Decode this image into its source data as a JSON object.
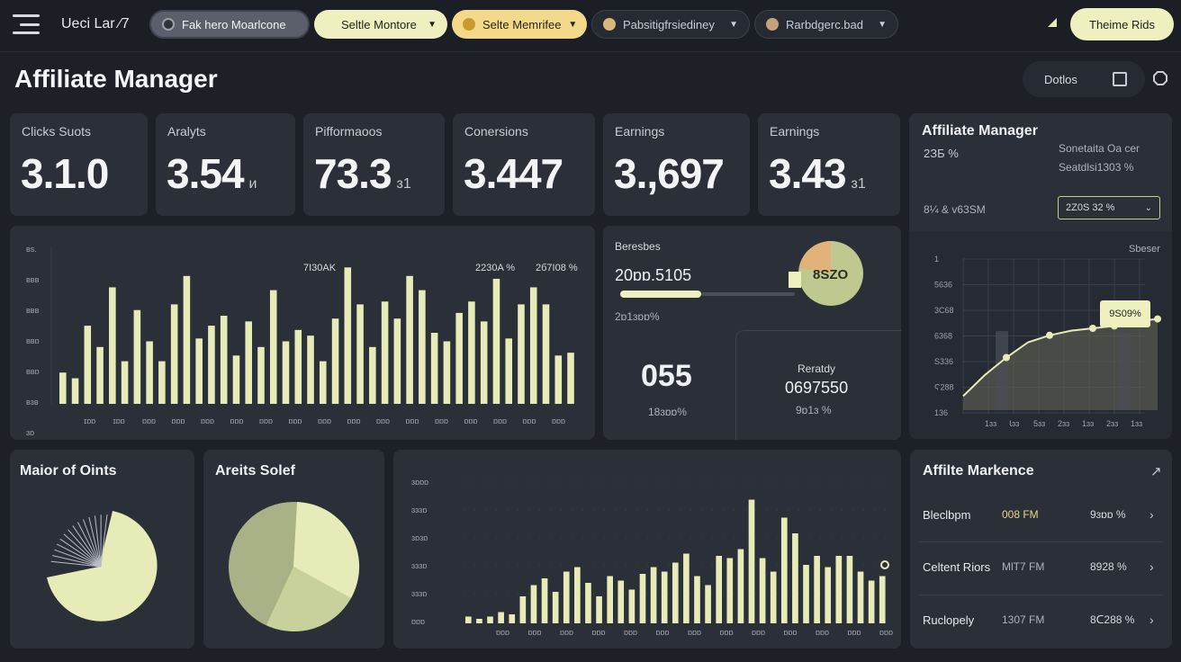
{
  "topbar": {
    "brand": "Ueci Lar ⁄7",
    "pills": [
      {
        "label": "Fak hero Moarlcone",
        "style": "grey"
      },
      {
        "label": "Seltle Montore",
        "style": "lime"
      },
      {
        "label": "Selte Memrifee",
        "style": "amber"
      },
      {
        "label": "Pabsitigfrsiediney",
        "style": "dark"
      },
      {
        "label": "Rarbdgerc.bad",
        "style": "dark"
      }
    ],
    "theme_button": "Theime Rids"
  },
  "page": {
    "title": "Affiliate Manager",
    "header_button": "Dotlos"
  },
  "kpis": [
    {
      "label": "Clicks Suots",
      "value": "3.1.0",
      "unit": ""
    },
    {
      "label": "Aralyts",
      "value": "3.54",
      "unit": "и"
    },
    {
      "label": "Pifformaoos",
      "value": "73.3",
      "unit": "ɜ1"
    },
    {
      "label": "Conersions",
      "value": "3.447",
      "unit": ""
    },
    {
      "label": "Earnings",
      "value": "3.,697",
      "unit": ""
    },
    {
      "label": "Earnings",
      "value": "3.43",
      "unit": "ɜ1"
    }
  ],
  "side_panel": {
    "title": "Affiliate Manager",
    "metric_left": "2ЗБ %",
    "metric_right_1": "Sonetaita Oa cer",
    "metric_right_2": "Seatdlsi1303 %",
    "footer_left": "8¼ & v63SM",
    "select_value": "2Z0S 32 %",
    "chart_legend": "Sbeser",
    "tooltip": "9S09%"
  },
  "main_chart": {
    "annotations": [
      "7I30AK",
      "2230A %",
      "2б7Ι08 %"
    ],
    "y_ticks": [
      "ʙs.",
      "ʙʙʙ",
      "ʙʙʙ",
      "ʙʙɒ",
      "ʙʙɒ",
      "ʙɜʙ",
      "ɜɒ"
    ],
    "x_ticks": [
      "ɪɒɒ",
      "ɪɒɒ",
      "ɒɒɒ",
      "ɒɒɒ",
      "ɒɒɒ",
      "ɒɒɒ",
      "ɒɒɒ",
      "ɒɒɒ",
      "ɒɒɒ",
      "ɒɒɒ",
      "ɒɒɒ",
      "ɒɒɒ",
      "ɒɒɒ",
      "ɒɒɒ",
      "ɒɒɒ",
      "ɒɒɒ",
      "ɒɒɒ"
    ]
  },
  "mid_panel": {
    "label": "Beresbes",
    "value": "20ɒɒ.5105",
    "sub": "2ɒ1ɜɒɒ%",
    "donut_label": "8SZO",
    "big_value": "055",
    "big_sub": "18ɜɒɒ%",
    "right_label": "Reratdy",
    "right_value": "0697550",
    "right_sub": "9ɒ1ɜ %"
  },
  "line_chart": {
    "y_ticks": [
      "1",
      "5636",
      "3C68",
      "6368",
      "S336",
      "Ϛ288",
      "136"
    ],
    "x_ticks": [
      "1ɜɜ",
      "Ꙇɜɜ",
      "5ɜɜ",
      "2ɜɜ",
      "1ɜɜ",
      "2ɜɜ",
      "1ɜɜ"
    ],
    "points": [
      12,
      30,
      45,
      58,
      64,
      68,
      70,
      72,
      76,
      78
    ]
  },
  "cards_bottom": {
    "pie1_title": "Maior of Oints",
    "pie2_title": "Areits Solef",
    "bar_y_ticks": [
      "ɜɒɒɒ",
      "ɜɜɜɒ",
      "ɜɒɜɒ",
      "ɜɜɜɒ",
      "ɜɜɜɒ",
      "ɒɒɒ"
    ],
    "bar_x_ticks": [
      "ɒɒɒ",
      "ɒɒɒ",
      "ɒɒɒ",
      "ɒɒɒ",
      "ɒɒɒ",
      "ɒɒɒ",
      "ɒɒɒ",
      "ɒɒɒ",
      "ɒɒɒ",
      "ɒɒɒ",
      "ɒɒɒ",
      "ɒɒɒ",
      "ɒɒɒ"
    ]
  },
  "market": {
    "title": "Affilte Markence",
    "rows": [
      {
        "name": "Bleclbpm",
        "mid": "008 FM",
        "val": "9ɜɒɒ %",
        "highlight": true
      },
      {
        "name": "Celtent Riors",
        "mid": "MlT7 FM",
        "val": "8928 %",
        "highlight": false
      },
      {
        "name": "Ruclopely",
        "mid": "1307 FM",
        "val": "8ᑕ288 %",
        "highlight": false
      }
    ]
  },
  "chart_data": [
    {
      "type": "bar",
      "values": [
        22,
        18,
        55,
        40,
        82,
        30,
        66,
        44,
        30,
        70,
        90,
        46,
        55,
        62,
        34,
        58,
        40,
        80,
        44,
        52,
        48,
        30,
        60,
        96,
        70,
        40,
        72,
        60,
        90,
        80,
        50,
        44,
        64,
        72,
        58,
        88,
        46,
        70,
        82,
        70,
        34,
        36
      ]
    },
    {
      "type": "bar",
      "values": [
        6,
        4,
        6,
        10,
        8,
        24,
        34,
        40,
        28,
        46,
        50,
        36,
        24,
        42,
        38,
        30,
        44,
        50,
        46,
        54,
        62,
        42,
        34,
        60,
        58,
        66,
        110,
        58,
        46,
        94,
        80,
        52,
        60,
        50,
        60,
        60,
        46,
        38,
        42
      ]
    }
  ]
}
